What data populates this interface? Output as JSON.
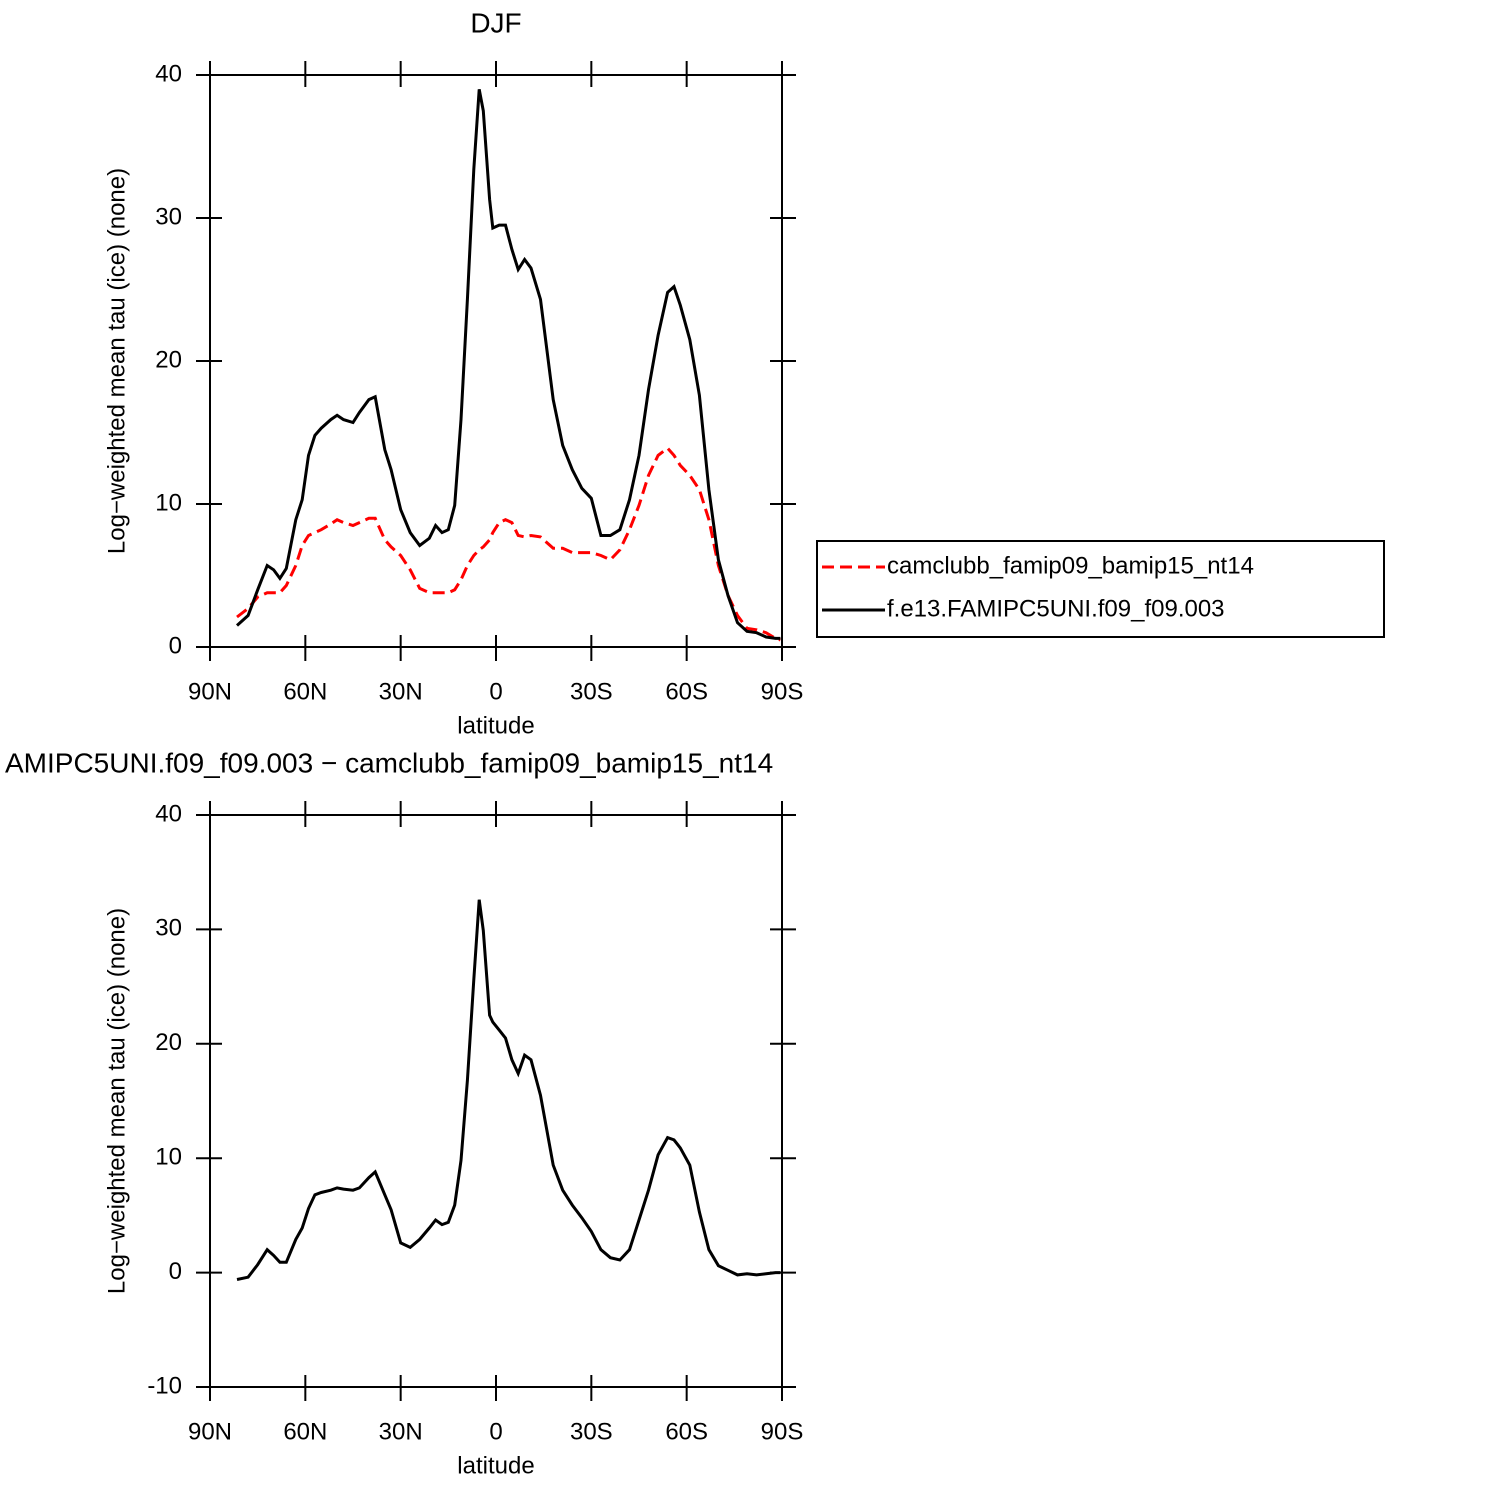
{
  "chart_data": [
    {
      "type": "line",
      "title": "DJF",
      "xlabel": "latitude",
      "ylabel": "Log−weighted mean tau (ice) (none)",
      "x": [
        81.5,
        78,
        75,
        72,
        70,
        68,
        66,
        63,
        61,
        59,
        57,
        55,
        52,
        50,
        48,
        45,
        43,
        40,
        38,
        35,
        33,
        30,
        27,
        24,
        21,
        19,
        17,
        15,
        13,
        11,
        9,
        7,
        5.3,
        4,
        2,
        1,
        -1,
        -3,
        -5,
        -7,
        -9,
        -11,
        -14,
        -18,
        -21,
        -24,
        -27,
        -30,
        -33,
        -36,
        -39,
        -42,
        -45,
        -48,
        -51,
        -54,
        -56,
        -58,
        -61,
        -64,
        -67,
        -70,
        -73,
        -76,
        -79,
        -82,
        -85,
        -88,
        -89.5
      ],
      "series": [
        {
          "name": "camclubb_famip09_bamip15_nt14",
          "color": "#ff0000",
          "linestyle": "dashed",
          "values": [
            2.1,
            2.7,
            3.5,
            3.8,
            3.8,
            3.8,
            4.3,
            5.7,
            7.1,
            7.8,
            8.0,
            8.2,
            8.6,
            8.9,
            8.7,
            8.5,
            8.7,
            9.0,
            9.0,
            7.5,
            7.0,
            6.4,
            5.4,
            4.1,
            3.8,
            3.8,
            3.8,
            3.8,
            4.0,
            4.7,
            5.7,
            6.4,
            6.8,
            7.0,
            7.5,
            8.0,
            8.7,
            8.9,
            8.7,
            7.8,
            7.7,
            7.8,
            7.7,
            6.9,
            6.9,
            6.6,
            6.6,
            6.6,
            6.4,
            6.1,
            6.8,
            8.2,
            9.9,
            12.0,
            13.4,
            13.9,
            13.4,
            12.7,
            12.0,
            11.0,
            8.9,
            5.7,
            3.6,
            2.2,
            1.3,
            1.2,
            1.0,
            0.6,
            0.5
          ]
        },
        {
          "name": "f.e13.FAMIPC5UNI.f09_f09.003",
          "color": "#000000",
          "linestyle": "solid",
          "values": [
            1.5,
            2.2,
            4.0,
            5.7,
            5.4,
            4.8,
            5.5,
            8.9,
            10.3,
            13.4,
            14.8,
            15.3,
            15.9,
            16.2,
            15.9,
            15.7,
            16.4,
            17.3,
            17.5,
            13.8,
            12.4,
            9.6,
            8.0,
            7.1,
            7.6,
            8.5,
            8.0,
            8.2,
            9.9,
            15.9,
            24.3,
            33.4,
            39.0,
            37.5,
            31.3,
            29.3,
            29.5,
            29.5,
            27.8,
            26.4,
            27.1,
            26.5,
            24.3,
            17.3,
            14.1,
            12.4,
            11.1,
            10.4,
            7.8,
            7.8,
            8.2,
            10.3,
            13.4,
            18.0,
            21.8,
            24.8,
            25.2,
            23.9,
            21.5,
            17.6,
            11.0,
            6.1,
            3.6,
            1.7,
            1.1,
            1.0,
            0.7,
            0.6,
            0.6
          ]
        }
      ],
      "xlim": [
        90,
        -90
      ],
      "xticks": [
        {
          "value": 90,
          "label": "90N"
        },
        {
          "value": 60,
          "label": "60N"
        },
        {
          "value": 30,
          "label": "30N"
        },
        0,
        {
          "value": -30,
          "label": "30S"
        },
        {
          "value": -60,
          "label": "60S"
        },
        {
          "value": -90,
          "label": "90S"
        }
      ],
      "ylim": [
        0,
        40
      ],
      "yticks": [
        0,
        10,
        20,
        30,
        40
      ],
      "legend": "right"
    },
    {
      "type": "line",
      "title": "AMIPC5UNI.f09_f09.003 − camclubb_famip09_bamip15_nt14",
      "xlabel": "latitude",
      "ylabel": "Log−weighted mean tau (ice) (none)",
      "x": [
        81.5,
        78,
        75,
        72,
        70,
        68,
        66,
        63,
        61,
        59,
        57,
        55,
        52,
        50,
        48,
        45,
        43,
        40,
        38,
        35,
        33,
        30,
        27,
        24,
        21,
        19,
        17,
        15,
        13,
        11,
        9,
        7,
        5.3,
        4,
        2,
        1,
        -1,
        -3,
        -5,
        -7,
        -9,
        -11,
        -14,
        -18,
        -21,
        -24,
        -27,
        -30,
        -33,
        -36,
        -39,
        -42,
        -45,
        -48,
        -51,
        -54,
        -56,
        -58,
        -61,
        -64,
        -67,
        -70,
        -73,
        -76,
        -79,
        -82,
        -85,
        -88,
        -89.5
      ],
      "series": [
        {
          "color": "#000000",
          "linestyle": "solid",
          "values": [
            -0.6,
            -0.4,
            0.7,
            2.0,
            1.5,
            0.9,
            0.9,
            2.9,
            3.9,
            5.6,
            6.8,
            7.0,
            7.2,
            7.4,
            7.3,
            7.2,
            7.4,
            8.3,
            8.8,
            6.8,
            5.5,
            2.6,
            2.2,
            2.9,
            3.9,
            4.6,
            4.2,
            4.4,
            5.9,
            9.8,
            16.8,
            25.6,
            32.6,
            29.9,
            22.5,
            21.9,
            21.2,
            20.5,
            18.6,
            17.4,
            19.0,
            18.6,
            15.5,
            9.4,
            7.2,
            5.9,
            4.8,
            3.6,
            2.0,
            1.3,
            1.1,
            2.0,
            4.6,
            7.2,
            10.3,
            11.8,
            11.6,
            10.9,
            9.4,
            5.3,
            2.0,
            0.6,
            0.2,
            -0.2,
            -0.1,
            -0.2,
            -0.1,
            0.0,
            0.0
          ]
        }
      ],
      "xlim": [
        90,
        -90
      ],
      "xticks": [
        {
          "value": 90,
          "label": "90N"
        },
        {
          "value": 60,
          "label": "60N"
        },
        {
          "value": 30,
          "label": "30N"
        },
        0,
        {
          "value": -30,
          "label": "30S"
        },
        {
          "value": -60,
          "label": "60S"
        },
        {
          "value": -90,
          "label": "90S"
        }
      ],
      "ylim": [
        -10,
        40
      ],
      "yticks": [
        -10,
        0,
        10,
        20,
        30,
        40
      ]
    }
  ]
}
